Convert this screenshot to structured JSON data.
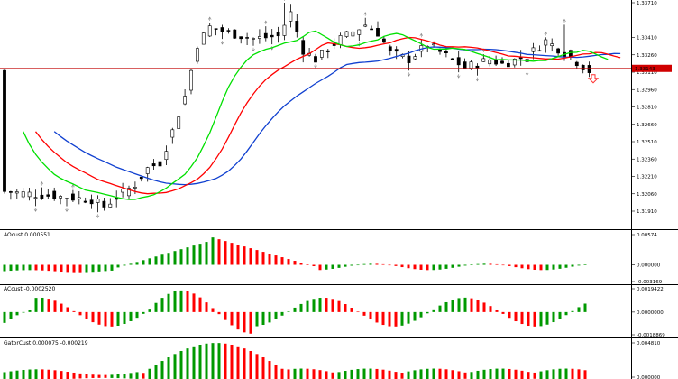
{
  "colors": {
    "bg": "#ffffff",
    "candle": "#000000",
    "ma_green": "#00e000",
    "ma_red": "#ff0000",
    "ma_blue": "#1040d0",
    "bar_up": "#009900",
    "bar_down": "#ff0000",
    "price_line": "#c00000",
    "price_tag_bg": "#d00000",
    "sell_arrow": "#ff3030"
  },
  "price_axis": {
    "ticks": [
      "1.33710",
      "1.33410",
      "1.33260",
      "1.33110",
      "1.32960",
      "1.32810",
      "1.32660",
      "1.32510",
      "1.32360",
      "1.32210",
      "1.32060",
      "1.31910"
    ],
    "current_price": "1.33143",
    "tick_values": [
      1.3371,
      1.3341,
      1.3326,
      1.3311,
      1.3296,
      1.3281,
      1.3266,
      1.3251,
      1.3236,
      1.3221,
      1.3206,
      1.3191
    ]
  },
  "indicators": [
    {
      "id": "ao",
      "label": "AOcust 0.000551",
      "axis_ticks": [
        "0.00574",
        "0.000000",
        "-0.003169"
      ],
      "axis_values": [
        0.00574,
        0.0,
        -0.003169
      ]
    },
    {
      "id": "ac",
      "label": "ACcust -0.0002520",
      "axis_ticks": [
        "0.0019422",
        "0.0000000",
        "-0.0018869"
      ],
      "axis_values": [
        0.0019422,
        0.0,
        -0.0018869
      ]
    },
    {
      "id": "gator",
      "label": "GatorCust 0.000075 -0.000219",
      "axis_ticks": [
        "0.004810",
        "0.000000"
      ],
      "axis_values": [
        0.00481,
        0.0
      ]
    }
  ]
}
